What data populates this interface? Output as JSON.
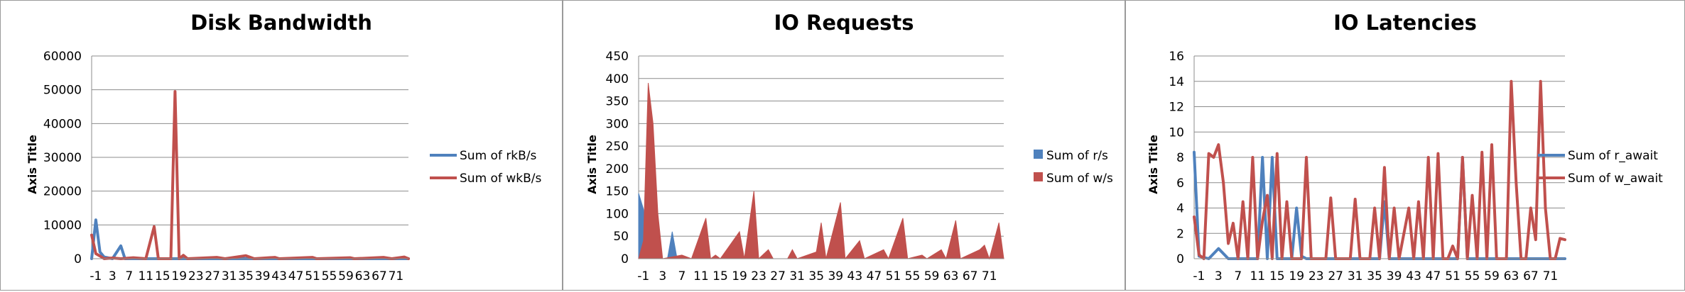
{
  "chart_data": [
    {
      "type": "line",
      "title": "Disk Bandwidth",
      "ylabel": "Axis Title",
      "xlabel": "",
      "ylim": [
        0,
        60000
      ],
      "yticks": [
        0,
        10000,
        20000,
        30000,
        40000,
        50000,
        60000
      ],
      "xticks": [
        -1,
        3,
        7,
        11,
        15,
        19,
        23,
        27,
        31,
        35,
        39,
        43,
        47,
        51,
        55,
        59,
        63,
        67,
        71
      ],
      "xlim": [
        -2,
        74
      ],
      "series": [
        {
          "name": "Sum of rkB/s",
          "color": "#4f81bd",
          "points": [
            [
              -2,
              0
            ],
            [
              -1,
              11500
            ],
            [
              0,
              2000
            ],
            [
              1,
              500
            ],
            [
              3,
              0
            ],
            [
              5,
              3800
            ],
            [
              6,
              0
            ],
            [
              18,
              0
            ],
            [
              74,
              0
            ]
          ]
        },
        {
          "name": "Sum of wkB/s",
          "color": "#c0504d",
          "points": [
            [
              -2,
              7000
            ],
            [
              -1,
              1500
            ],
            [
              0,
              800
            ],
            [
              1,
              0
            ],
            [
              3,
              200
            ],
            [
              5,
              0
            ],
            [
              8,
              300
            ],
            [
              11,
              0
            ],
            [
              13,
              9500
            ],
            [
              14,
              0
            ],
            [
              17,
              0
            ],
            [
              18,
              49500
            ],
            [
              19,
              0
            ],
            [
              20,
              1000
            ],
            [
              21,
              0
            ],
            [
              28,
              400
            ],
            [
              30,
              0
            ],
            [
              35,
              900
            ],
            [
              37,
              0
            ],
            [
              42,
              400
            ],
            [
              43,
              0
            ],
            [
              51,
              400
            ],
            [
              52,
              0
            ],
            [
              60,
              300
            ],
            [
              61,
              0
            ],
            [
              68,
              400
            ],
            [
              70,
              0
            ],
            [
              73,
              500
            ],
            [
              74,
              0
            ]
          ]
        }
      ]
    },
    {
      "type": "area",
      "title": "IO Requests",
      "ylabel": "Axis Title",
      "xlabel": "",
      "ylim": [
        0,
        450
      ],
      "yticks": [
        0,
        50,
        100,
        150,
        200,
        250,
        300,
        350,
        400,
        450
      ],
      "xticks": [
        -1,
        3,
        7,
        11,
        15,
        19,
        23,
        27,
        31,
        35,
        39,
        43,
        47,
        51,
        55,
        59,
        63,
        67,
        71
      ],
      "xlim": [
        -2,
        74
      ],
      "series": [
        {
          "name": "Sum of r/s",
          "color": "#4f81bd",
          "points": [
            [
              -2,
              145
            ],
            [
              -1,
              110
            ],
            [
              0,
              20
            ],
            [
              1,
              0
            ],
            [
              4,
              0
            ],
            [
              5,
              60
            ],
            [
              6,
              0
            ],
            [
              74,
              0
            ]
          ]
        },
        {
          "name": "Sum of w/s",
          "color": "#c0504d",
          "points": [
            [
              -2,
              0
            ],
            [
              -1,
              40
            ],
            [
              0,
              390
            ],
            [
              1,
              300
            ],
            [
              2,
              100
            ],
            [
              3,
              0
            ],
            [
              7,
              8
            ],
            [
              9,
              0
            ],
            [
              12,
              90
            ],
            [
              13,
              0
            ],
            [
              14,
              8
            ],
            [
              15,
              0
            ],
            [
              19,
              60
            ],
            [
              20,
              0
            ],
            [
              22,
              150
            ],
            [
              23,
              0
            ],
            [
              25,
              20
            ],
            [
              26,
              0
            ],
            [
              29,
              0
            ],
            [
              30,
              20
            ],
            [
              31,
              0
            ],
            [
              35,
              15
            ],
            [
              36,
              80
            ],
            [
              37,
              0
            ],
            [
              40,
              125
            ],
            [
              41,
              0
            ],
            [
              44,
              40
            ],
            [
              45,
              0
            ],
            [
              49,
              20
            ],
            [
              50,
              0
            ],
            [
              53,
              90
            ],
            [
              54,
              0
            ],
            [
              57,
              8
            ],
            [
              58,
              0
            ],
            [
              61,
              20
            ],
            [
              62,
              0
            ],
            [
              64,
              85
            ],
            [
              65,
              0
            ],
            [
              69,
              20
            ],
            [
              70,
              30
            ],
            [
              71,
              0
            ],
            [
              73,
              80
            ],
            [
              74,
              0
            ]
          ]
        }
      ]
    },
    {
      "type": "line",
      "title": "IO Latencies",
      "ylabel": "Axis Title",
      "xlabel": "",
      "ylim": [
        0,
        16
      ],
      "yticks": [
        0,
        2,
        4,
        6,
        8,
        10,
        12,
        14,
        16
      ],
      "xticks": [
        -1,
        3,
        7,
        11,
        15,
        19,
        23,
        27,
        31,
        35,
        39,
        43,
        47,
        51,
        55,
        59,
        63,
        67,
        71
      ],
      "xlim": [
        -2,
        74
      ],
      "series": [
        {
          "name": "Sum of r_await",
          "color": "#4f81bd",
          "points": [
            [
              -2,
              8.4
            ],
            [
              -1,
              0.2
            ],
            [
              1,
              0
            ],
            [
              3,
              0.8
            ],
            [
              5,
              0
            ],
            [
              11,
              0
            ],
            [
              12,
              8
            ],
            [
              13,
              0
            ],
            [
              14,
              8
            ],
            [
              15,
              0
            ],
            [
              18,
              0
            ],
            [
              19,
              4
            ],
            [
              20,
              0.2
            ],
            [
              21,
              0
            ],
            [
              36,
              0
            ],
            [
              37,
              4.5
            ],
            [
              38,
              0
            ],
            [
              52,
              0
            ],
            [
              53,
              8
            ],
            [
              54,
              0
            ],
            [
              74,
              0
            ]
          ]
        },
        {
          "name": "Sum of w_await",
          "color": "#c0504d",
          "points": [
            [
              -2,
              3.3
            ],
            [
              -1,
              0.3
            ],
            [
              0,
              0
            ],
            [
              1,
              8.3
            ],
            [
              2,
              8
            ],
            [
              3,
              9
            ],
            [
              4,
              6
            ],
            [
              5,
              1.2
            ],
            [
              6,
              2.8
            ],
            [
              7,
              0
            ],
            [
              8,
              4.5
            ],
            [
              9,
              0
            ],
            [
              10,
              8
            ],
            [
              11,
              0
            ],
            [
              12,
              3
            ],
            [
              13,
              5
            ],
            [
              14,
              0
            ],
            [
              15,
              8.3
            ],
            [
              16,
              0
            ],
            [
              17,
              4.5
            ],
            [
              18,
              0
            ],
            [
              20,
              0
            ],
            [
              21,
              8
            ],
            [
              22,
              0
            ],
            [
              25,
              0
            ],
            [
              26,
              4.8
            ],
            [
              27,
              0
            ],
            [
              30,
              0
            ],
            [
              31,
              4.7
            ],
            [
              32,
              0
            ],
            [
              34,
              0
            ],
            [
              35,
              4
            ],
            [
              36,
              0
            ],
            [
              37,
              7.2
            ],
            [
              38,
              0
            ],
            [
              39,
              4
            ],
            [
              40,
              0
            ],
            [
              42,
              4
            ],
            [
              43,
              0
            ],
            [
              44,
              4.5
            ],
            [
              45,
              0
            ],
            [
              46,
              8
            ],
            [
              47,
              0
            ],
            [
              48,
              8.3
            ],
            [
              49,
              0
            ],
            [
              50,
              0
            ],
            [
              51,
              1
            ],
            [
              52,
              0
            ],
            [
              53,
              8
            ],
            [
              54,
              0
            ],
            [
              55,
              5
            ],
            [
              56,
              0
            ],
            [
              57,
              8.4
            ],
            [
              58,
              0
            ],
            [
              59,
              9
            ],
            [
              60,
              0
            ],
            [
              62,
              0
            ],
            [
              63,
              14
            ],
            [
              64,
              6
            ],
            [
              65,
              0
            ],
            [
              66,
              0
            ],
            [
              67,
              4
            ],
            [
              68,
              1.5
            ],
            [
              69,
              14
            ],
            [
              70,
              4
            ],
            [
              71,
              0
            ],
            [
              72,
              0
            ],
            [
              73,
              1.6
            ],
            [
              74,
              1.5
            ]
          ]
        }
      ]
    }
  ]
}
